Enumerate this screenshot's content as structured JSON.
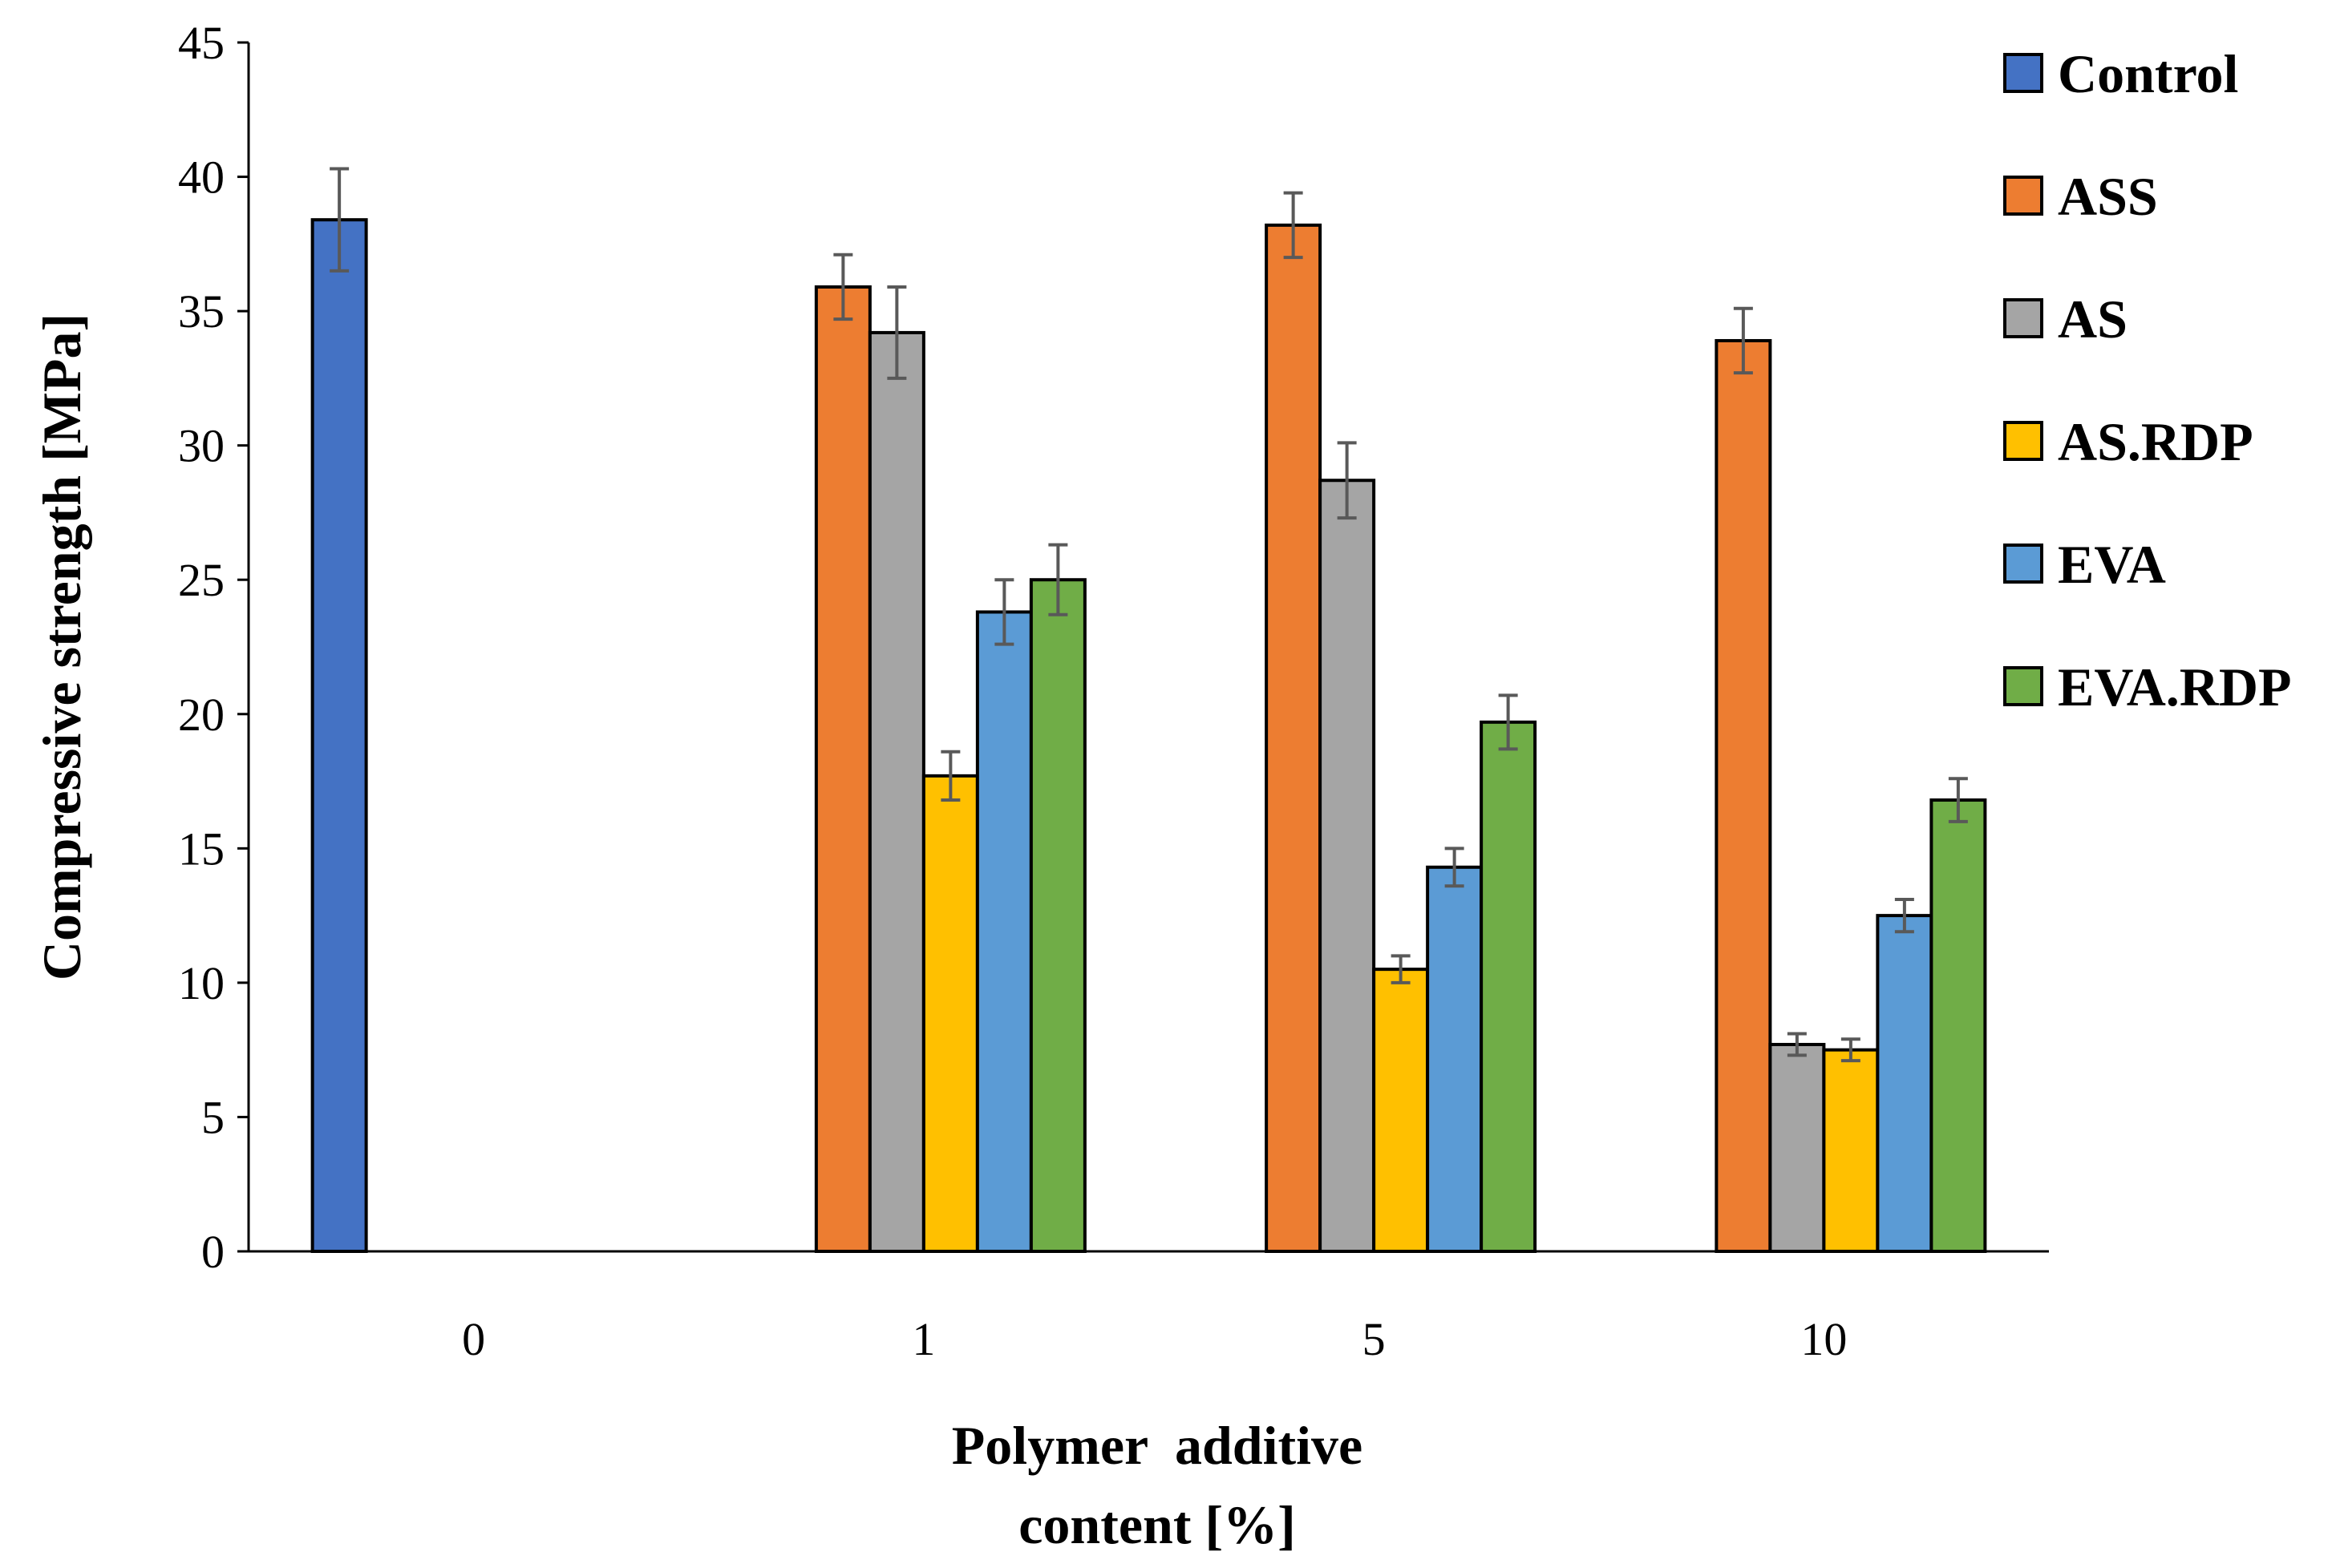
{
  "chart_data": {
    "type": "bar",
    "title": "",
    "xlabel_lines": [
      "Polymer  additive",
      "content [%]"
    ],
    "ylabel": "Compressive strength [MPa]",
    "ylim": [
      0,
      45
    ],
    "yticks": [
      0,
      5,
      10,
      15,
      20,
      25,
      30,
      35,
      40,
      45
    ],
    "categories": [
      "0",
      "1",
      "5",
      "10"
    ],
    "grid": false,
    "legend_position": "right",
    "series": [
      {
        "name": "Control",
        "color": "#4472c4",
        "values": [
          38.4,
          null,
          null,
          null
        ],
        "errors": [
          1.9,
          null,
          null,
          null
        ]
      },
      {
        "name": "ASS",
        "color": "#ed7d31",
        "values": [
          null,
          35.9,
          38.2,
          33.9
        ],
        "errors": [
          null,
          1.2,
          1.2,
          1.2
        ]
      },
      {
        "name": "AS",
        "color": "#a5a5a5",
        "values": [
          null,
          34.2,
          28.7,
          7.7
        ],
        "errors": [
          null,
          1.7,
          1.4,
          0.4
        ]
      },
      {
        "name": "AS.RDP",
        "color": "#ffc000",
        "values": [
          null,
          17.7,
          10.5,
          7.5
        ],
        "errors": [
          null,
          0.9,
          0.5,
          0.4
        ]
      },
      {
        "name": "EVA",
        "color": "#5b9bd5",
        "values": [
          null,
          23.8,
          14.3,
          12.5
        ],
        "errors": [
          null,
          1.2,
          0.7,
          0.6
        ]
      },
      {
        "name": "EVA.RDP",
        "color": "#70ad47",
        "values": [
          null,
          25.0,
          19.7,
          16.8
        ],
        "errors": [
          null,
          1.3,
          1.0,
          0.8
        ]
      }
    ]
  }
}
